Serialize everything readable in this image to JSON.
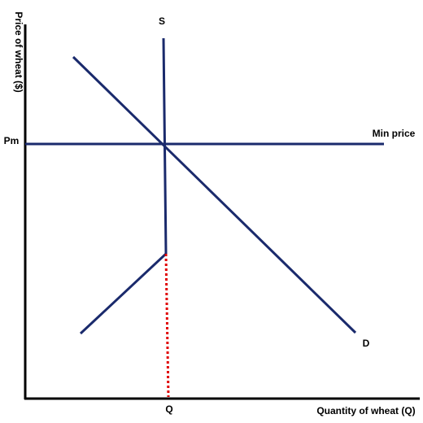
{
  "axes": {
    "y_label": "Price of wheat ($)",
    "x_label": "Quantity of wheat (Q)"
  },
  "curves": {
    "supply": "S",
    "demand": "D"
  },
  "price_floor": {
    "level_label": "Pm",
    "line_label": "Min price"
  },
  "quantity_label": "Q"
}
